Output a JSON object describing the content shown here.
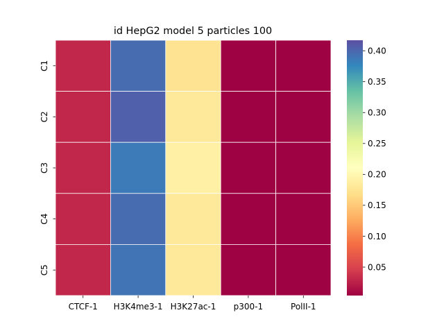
{
  "chart_data": {
    "type": "heatmap",
    "title": "id HepG2 model 5 particles 100",
    "x_categories": [
      "CTCF-1",
      "H3K4me3-1",
      "H3K27ac-1",
      "p300-1",
      "PolII-1"
    ],
    "y_categories": [
      "C1",
      "C2",
      "C3",
      "C4",
      "C5"
    ],
    "values": [
      [
        0.03,
        0.395,
        0.175,
        0.005,
        0.005
      ],
      [
        0.03,
        0.405,
        0.18,
        0.005,
        0.005
      ],
      [
        0.03,
        0.385,
        0.19,
        0.005,
        0.005
      ],
      [
        0.03,
        0.395,
        0.18,
        0.005,
        0.005
      ],
      [
        0.03,
        0.39,
        0.18,
        0.005,
        0.005
      ]
    ],
    "colormap": "Spectral",
    "value_range": [
      0.004,
      0.417
    ],
    "colorbar": {
      "placement": "right",
      "ticks": [
        0.05,
        0.1,
        0.15,
        0.2,
        0.25,
        0.3,
        0.35,
        0.4
      ],
      "tick_labels": [
        "0.05",
        "0.10",
        "0.15",
        "0.20",
        "0.25",
        "0.30",
        "0.35",
        "0.40"
      ]
    },
    "cell_divider_color": "#ffffff"
  }
}
